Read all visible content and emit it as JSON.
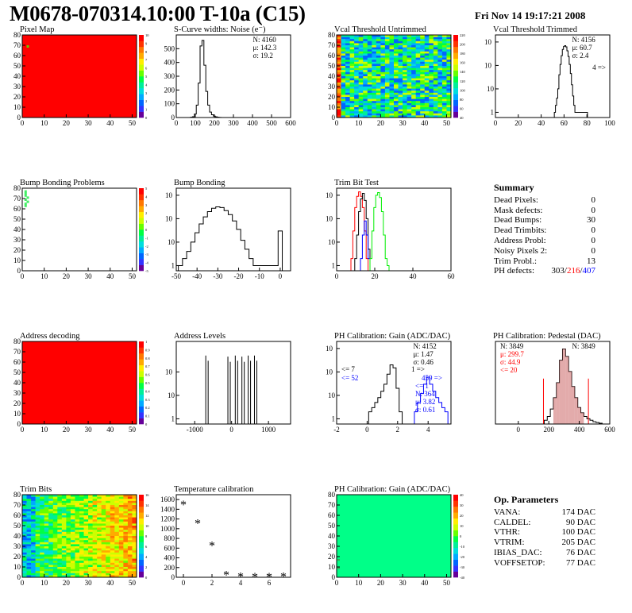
{
  "header": {
    "title": "M0678-070314.10:00 T-10a (C15)",
    "date": "Fri Nov 14 19:17:21 2008"
  },
  "colors": {
    "red": "#ff0000",
    "green": "#00ee00",
    "blue": "#0000ff",
    "pedestal_fill": "#cc6666"
  },
  "palette": [
    "#660099",
    "#3333ff",
    "#0066ff",
    "#00aaff",
    "#00dddd",
    "#00ee99",
    "#00ff44",
    "#66ff00",
    "#ccff00",
    "#ffee00",
    "#ffaa00",
    "#ff7700",
    "#ff3300",
    "#ff0000"
  ],
  "chart_data": [
    {
      "id": "pixel_map",
      "type": "heatmap",
      "title": "Pixel Map",
      "xlim": [
        0,
        52
      ],
      "ylim": [
        0,
        80
      ],
      "xticks": [
        "0",
        "10",
        "20",
        "30",
        "40",
        "50"
      ],
      "yticks": [
        "0",
        "10",
        "20",
        "30",
        "40",
        "50",
        "60",
        "70",
        "80"
      ],
      "zticks": [
        "0",
        "1",
        "2",
        "3",
        "4",
        "5",
        "6",
        "7",
        "8",
        "9",
        "10"
      ],
      "fill": "red",
      "hot_pixels": [
        [
          2,
          70
        ]
      ]
    },
    {
      "id": "scurve_noise",
      "type": "histogram",
      "title": "S-Curve widths: Noise (e⁻)",
      "xlim": [
        0,
        600
      ],
      "ylim": [
        0,
        600
      ],
      "xticks": [
        "0",
        "100",
        "200",
        "300",
        "400",
        "500",
        "600"
      ],
      "yticks": [
        "0",
        "100",
        "200",
        "300",
        "400",
        "500"
      ],
      "stats": {
        "N": "N: 4160",
        "mu": "μ: 142.3",
        "sigma": "σ: 19.2"
      },
      "x": [
        80,
        90,
        100,
        110,
        120,
        130,
        140,
        150,
        160,
        170,
        180,
        190,
        200,
        210,
        220,
        230
      ],
      "y": [
        2,
        6,
        25,
        90,
        250,
        520,
        560,
        380,
        190,
        90,
        40,
        20,
        10,
        5,
        2,
        1
      ]
    },
    {
      "id": "vcal_untrimmed",
      "type": "heatmap",
      "title": "Vcal Threshold Untrimmed",
      "xlim": [
        0,
        52
      ],
      "ylim": [
        0,
        80
      ],
      "xticks": [
        "0",
        "10",
        "20",
        "30",
        "40",
        "50"
      ],
      "yticks": [
        "0",
        "10",
        "20",
        "30",
        "40",
        "50",
        "60",
        "70",
        "80"
      ],
      "zticks": [
        "40",
        "60",
        "80",
        "100",
        "120",
        "140",
        "160",
        "180",
        "200",
        "220"
      ],
      "fill": "noise"
    },
    {
      "id": "vcal_trimmed",
      "type": "histogram",
      "title": "Vcal Threshold Trimmed",
      "log": true,
      "xlim": [
        0,
        100
      ],
      "ylim": [
        0.6,
        2000
      ],
      "xticks": [
        "0",
        "20",
        "40",
        "60",
        "80",
        "100"
      ],
      "yticks": [
        "1",
        "10",
        "10²",
        "10³"
      ],
      "stats": {
        "N": "N: 4156",
        "mu": "μ: 60.7",
        "sigma": "σ:  2.4"
      },
      "overflow": "4 =>",
      "x": [
        52,
        53,
        54,
        55,
        56,
        57,
        58,
        59,
        60,
        61,
        62,
        63,
        64,
        65,
        66,
        67,
        68,
        69,
        70,
        72,
        75,
        80
      ],
      "y": [
        1,
        2,
        4,
        10,
        40,
        110,
        260,
        480,
        640,
        700,
        620,
        420,
        240,
        110,
        45,
        15,
        5,
        2,
        1,
        1,
        1,
        1
      ]
    },
    {
      "id": "bump_problems",
      "type": "heatmap",
      "title": "Bump Bonding Problems",
      "xlim": [
        0,
        52
      ],
      "ylim": [
        0,
        80
      ],
      "xticks": [
        "0",
        "10",
        "20",
        "30",
        "40",
        "50"
      ],
      "yticks": [
        "0",
        "10",
        "20",
        "30",
        "40",
        "50",
        "60",
        "70",
        "80"
      ],
      "zticks": [
        "-5",
        "-4",
        "-3",
        "-2",
        "-1",
        "0",
        "1",
        "2",
        "3",
        "4",
        "5"
      ],
      "fill": "white",
      "hot_pixels": [
        [
          1,
          78
        ],
        [
          1,
          76
        ],
        [
          1,
          74
        ],
        [
          2,
          72
        ],
        [
          1,
          70
        ],
        [
          2,
          68
        ],
        [
          1,
          66
        ],
        [
          1,
          64
        ]
      ]
    },
    {
      "id": "bump_bonding",
      "type": "histogram",
      "title": "Bump Bonding",
      "log": true,
      "xlim": [
        -50,
        5
      ],
      "ylim": [
        0.6,
        2000
      ],
      "xticks": [
        "-50",
        "-40",
        "-30",
        "-20",
        "-10",
        "0"
      ],
      "yticks": [
        "1",
        "10",
        "10²",
        "10³"
      ],
      "x": [
        -48,
        -46,
        -44,
        -42,
        -40,
        -38,
        -36,
        -34,
        -32,
        -30,
        -28,
        -26,
        -24,
        -22,
        -20,
        -18,
        -16,
        -14,
        -12,
        -2,
        0
      ],
      "y": [
        1,
        2,
        4,
        10,
        25,
        60,
        120,
        200,
        280,
        320,
        300,
        220,
        150,
        80,
        35,
        12,
        5,
        2,
        1,
        1,
        30
      ]
    },
    {
      "id": "trim_bit_test",
      "type": "histogram",
      "title": "Trim Bit Test",
      "log": true,
      "xlim": [
        0,
        60
      ],
      "ylim": [
        0.6,
        2000
      ],
      "xticks": [
        "0",
        "20",
        "40",
        "60"
      ],
      "yticks": [
        "1",
        "10",
        "10²",
        "10³"
      ],
      "series": [
        {
          "color": "red",
          "x": [
            8,
            9,
            10,
            11,
            12,
            13,
            14,
            15,
            16
          ],
          "y": [
            2,
            30,
            300,
            900,
            1400,
            900,
            300,
            30,
            2
          ]
        },
        {
          "color": "black",
          "x": [
            10,
            11,
            12,
            13,
            14,
            15,
            16,
            17
          ],
          "y": [
            2,
            20,
            200,
            700,
            1200,
            600,
            100,
            5
          ]
        },
        {
          "color": "blue",
          "x": [
            13,
            14,
            15,
            16,
            17
          ],
          "y": [
            2,
            20,
            80,
            20,
            2
          ]
        },
        {
          "color": "green",
          "x": [
            18,
            19,
            20,
            21,
            22,
            23,
            24,
            25,
            26,
            27
          ],
          "y": [
            2,
            30,
            300,
            1000,
            1300,
            800,
            200,
            20,
            2,
            1
          ]
        }
      ]
    },
    {
      "id": "address_decoding",
      "type": "heatmap",
      "title": "Address decoding",
      "xlim": [
        0,
        52
      ],
      "ylim": [
        0,
        80
      ],
      "xticks": [
        "0",
        "10",
        "20",
        "30",
        "40",
        "50"
      ],
      "yticks": [
        "0",
        "10",
        "20",
        "30",
        "40",
        "50",
        "60",
        "70",
        "80"
      ],
      "zticks": [
        "0",
        "0.1",
        "0.2",
        "0.3",
        "0.4",
        "0.5",
        "0.6",
        "0.7",
        "0.8",
        "0.9",
        "1"
      ],
      "fill": "red"
    },
    {
      "id": "address_levels",
      "type": "histogram",
      "title": "Address Levels",
      "log": true,
      "xlim": [
        -1500,
        1600
      ],
      "ylim": [
        0.6,
        2000
      ],
      "xticks": [
        "-1000",
        "0",
        "1000"
      ],
      "yticks": [
        "1",
        "10",
        "10²"
      ],
      "spikes": [
        [
          -700,
          500
        ],
        [
          -100,
          450
        ],
        [
          100,
          500
        ],
        [
          280,
          450
        ],
        [
          450,
          500
        ],
        [
          620,
          500
        ]
      ]
    },
    {
      "id": "ph_gain",
      "type": "histogram",
      "title": "PH Calibration: Gain (ADC/DAC)",
      "log": true,
      "xlim": [
        -2,
        5.5
      ],
      "ylim": [
        0.6,
        2000
      ],
      "xticks": [
        "-2",
        "0",
        "2",
        "4"
      ],
      "yticks": [
        "1",
        "10",
        "10²",
        "10³"
      ],
      "stats": {
        "N": "N: 4152",
        "mu": "μ: 1.47",
        "sigma": "σ: 0.46"
      },
      "underflow": "<= 7",
      "overflow": "1 =>",
      "stats2": {
        "underflow": "<= 52",
        "overflow": "459 =>",
        "under": "<= 1",
        "N": "N: 364",
        "mu": "μ: 3.82",
        "sigma": "σ: 0.61"
      },
      "series": [
        {
          "color": "black",
          "x": [
            0.2,
            0.4,
            0.6,
            0.8,
            1.0,
            1.2,
            1.4,
            1.6,
            1.8,
            2.0,
            2.2
          ],
          "y": [
            2,
            3,
            5,
            8,
            15,
            30,
            80,
            200,
            150,
            20,
            2
          ]
        },
        {
          "color": "blue",
          "x": [
            3.2,
            3.4,
            3.6,
            3.8,
            4.0,
            4.2,
            4.4,
            4.6,
            4.8,
            5.0,
            5.2
          ],
          "y": [
            2,
            5,
            12,
            30,
            60,
            30,
            15,
            8,
            5,
            3,
            2
          ]
        }
      ]
    },
    {
      "id": "ph_pedestal",
      "type": "histogram",
      "title": "PH Calibration: Pedestal (DAC)",
      "xlim": [
        -150,
        600
      ],
      "ylim": [
        0,
        110
      ],
      "xticks": [
        "0",
        "200",
        "400",
        "600"
      ],
      "stats": {
        "N": "N: 3849",
        "mu": "μ: 299.7",
        "sigma": "σ: 44.9"
      },
      "underflow": "<= 20",
      "cuts": [
        165,
        460
      ],
      "x": [
        180,
        200,
        220,
        240,
        260,
        280,
        300,
        320,
        340,
        360,
        380,
        400,
        420,
        440,
        460,
        480,
        500,
        520,
        540
      ],
      "y": [
        5,
        10,
        20,
        35,
        55,
        85,
        100,
        90,
        70,
        50,
        35,
        22,
        15,
        10,
        7,
        5,
        3,
        2,
        1
      ]
    },
    {
      "id": "trim_bits",
      "type": "heatmap",
      "title": "Trim Bits",
      "xlim": [
        0,
        52
      ],
      "ylim": [
        0,
        80
      ],
      "xticks": [
        "0",
        "10",
        "20",
        "30",
        "40",
        "50"
      ],
      "yticks": [
        "0",
        "10",
        "20",
        "30",
        "40",
        "50",
        "60",
        "70",
        "80"
      ],
      "zticks": [
        "0",
        "2",
        "4",
        "6",
        "8",
        "10",
        "12",
        "14",
        "16"
      ],
      "fill": "trim"
    },
    {
      "id": "temperature_calibration",
      "type": "scatter",
      "title": "Temperature calibration",
      "xlim": [
        -0.5,
        7.5
      ],
      "ylim": [
        0,
        1700
      ],
      "xticks": [
        "0",
        "2",
        "4",
        "6"
      ],
      "yticks": [
        "0",
        "200",
        "400",
        "600",
        "800",
        "1000",
        "1200",
        "1400",
        "1600"
      ],
      "x": [
        0,
        1,
        2,
        3,
        4,
        5,
        6,
        7
      ],
      "y": [
        1520,
        1140,
        680,
        70,
        40,
        30,
        30,
        40
      ]
    },
    {
      "id": "ph_gain_map",
      "type": "heatmap",
      "title": "PH Calibration: Gain (ADC/DAC)",
      "xlim": [
        0,
        52
      ],
      "ylim": [
        0,
        80
      ],
      "xticks": [
        "0",
        "10",
        "20",
        "30",
        "40",
        "50"
      ],
      "yticks": [
        "0",
        "10",
        "20",
        "30",
        "40",
        "50",
        "60",
        "70",
        "80"
      ],
      "zticks": [
        "-40",
        "-30",
        "-20",
        "-10",
        "0",
        "10",
        "20",
        "30",
        "40"
      ],
      "fill": "green"
    }
  ],
  "summary": {
    "title": "Summary",
    "rows": [
      {
        "label": "Dead Pixels:",
        "value": "0"
      },
      {
        "label": "Mask defects:",
        "value": "0"
      },
      {
        "label": "Dead Bumps:",
        "value": "30"
      },
      {
        "label": "Dead Trimbits:",
        "value": "0"
      },
      {
        "label": "Address Probl:",
        "value": "0"
      },
      {
        "label": "Noisy Pixels 2:",
        "value": "0"
      },
      {
        "label": "Trim Probl.:",
        "value": "13"
      }
    ],
    "ph_label": "PH defects:",
    "ph_a": "303/",
    "ph_b": "216",
    "ph_sep": "/",
    "ph_c": "407"
  },
  "op_params": {
    "title": "Op. Parameters",
    "rows": [
      {
        "label": "VANA:",
        "value": "174 DAC"
      },
      {
        "label": "CALDEL:",
        "value": "90 DAC"
      },
      {
        "label": "VTHR:",
        "value": "100 DAC"
      },
      {
        "label": "VTRIM:",
        "value": "205 DAC"
      },
      {
        "label": "IBIAS_DAC:",
        "value": "76 DAC"
      },
      {
        "label": "VOFFSETOP:",
        "value": "77 DAC"
      }
    ]
  }
}
